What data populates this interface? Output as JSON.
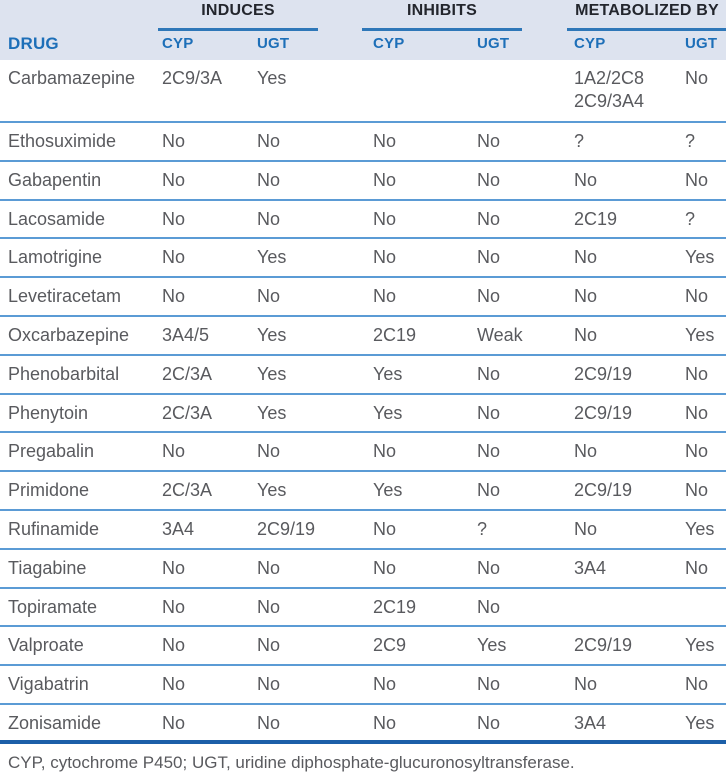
{
  "colors": {
    "header_bg": "#dde3ef",
    "accent_blue": "#1d6fb8",
    "dark_header_text": "#23262d",
    "row_line": "#5b9bd5",
    "group_underline": "#2e77b8",
    "bottom_line": "#1c5fa8",
    "body_text": "#595a5e",
    "page_bg": "#ffffff"
  },
  "header": {
    "drug_label": "DRUG",
    "groups": [
      {
        "label": "INDUCES"
      },
      {
        "label": "INHIBITS"
      },
      {
        "label": "METABOLIZED BY"
      }
    ],
    "sub_columns": [
      "CYP",
      "UGT",
      "CYP",
      "UGT",
      "CYP",
      "UGT"
    ]
  },
  "table": {
    "rows": [
      {
        "drug": "Carbamazepine",
        "cells": [
          "2C9/3A",
          "Yes",
          "",
          "",
          "1A2/2C8\n2C9/3A4",
          "No"
        ]
      },
      {
        "drug": "Ethosuximide",
        "cells": [
          "No",
          "No",
          "No",
          "No",
          "?",
          "?"
        ]
      },
      {
        "drug": "Gabapentin",
        "cells": [
          "No",
          "No",
          "No",
          "No",
          "No",
          "No"
        ]
      },
      {
        "drug": "Lacosamide",
        "cells": [
          "No",
          "No",
          "No",
          "No",
          "2C19",
          "?"
        ]
      },
      {
        "drug": "Lamotrigine",
        "cells": [
          "No",
          "Yes",
          "No",
          "No",
          "No",
          "Yes"
        ]
      },
      {
        "drug": "Levetiracetam",
        "cells": [
          "No",
          "No",
          "No",
          "No",
          "No",
          "No"
        ]
      },
      {
        "drug": "Oxcarbazepine",
        "cells": [
          "3A4/5",
          "Yes",
          "2C19",
          "Weak",
          "No",
          "Yes"
        ]
      },
      {
        "drug": "Phenobarbital",
        "cells": [
          "2C/3A",
          "Yes",
          "Yes",
          "No",
          "2C9/19",
          "No"
        ]
      },
      {
        "drug": "Phenytoin",
        "cells": [
          "2C/3A",
          "Yes",
          "Yes",
          "No",
          "2C9/19",
          "No"
        ]
      },
      {
        "drug": "Pregabalin",
        "cells": [
          "No",
          "No",
          "No",
          "No",
          "No",
          "No"
        ]
      },
      {
        "drug": "Primidone",
        "cells": [
          "2C/3A",
          "Yes",
          "Yes",
          "No",
          "2C9/19",
          "No"
        ]
      },
      {
        "drug": "Rufinamide",
        "cells": [
          "3A4",
          "2C9/19",
          "No",
          "?",
          "No",
          "Yes"
        ]
      },
      {
        "drug": "Tiagabine",
        "cells": [
          "No",
          "No",
          "No",
          "No",
          "3A4",
          "No"
        ]
      },
      {
        "drug": "Topiramate",
        "cells": [
          "No",
          "No",
          "2C19",
          "No",
          "",
          ""
        ]
      },
      {
        "drug": "Valproate",
        "cells": [
          "No",
          "No",
          "2C9",
          "Yes",
          "2C9/19",
          "Yes"
        ]
      },
      {
        "drug": "Vigabatrin",
        "cells": [
          "No",
          "No",
          "No",
          "No",
          "No",
          "No"
        ]
      },
      {
        "drug": "Zonisamide",
        "cells": [
          "No",
          "No",
          "No",
          "No",
          "3A4",
          "Yes"
        ]
      }
    ]
  },
  "footnote": "CYP, cytochrome P450; UGT, uridine diphosphate-glucuronosyltransferase."
}
